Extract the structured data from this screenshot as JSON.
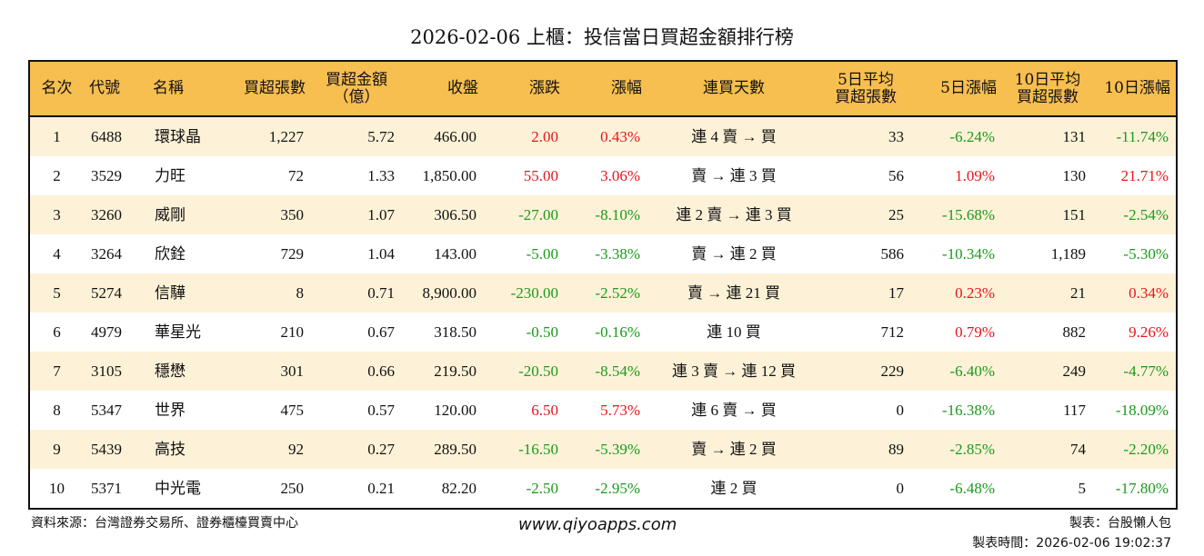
{
  "title": "2026-02-06 上櫃：投信當日買超金額排行榜",
  "colors": {
    "header": "#f7be50",
    "row_alt": "#fdf2d8",
    "up": "#e8141c",
    "down": "#1a9a1a"
  },
  "headers": [
    "名次",
    "代號",
    "名稱",
    "買超張數",
    "買超金額\n（億）",
    "收盤",
    "漲跌",
    "漲幅",
    "連買天數",
    "5日平均\n買超張數",
    "5日漲幅",
    "10日平均\n買超張數",
    "10日漲幅"
  ],
  "rows": [
    [
      "1",
      "6488",
      "環球晶",
      "1,227",
      "5.72",
      "466.00",
      "2.00",
      "0.43%",
      "連 4 賣 → 買",
      "33",
      "-6.24%",
      "131",
      "-11.74%"
    ],
    [
      "2",
      "3529",
      "力旺",
      "72",
      "1.33",
      "1,850.00",
      "55.00",
      "3.06%",
      "賣 → 連 3 買",
      "56",
      "1.09%",
      "130",
      "21.71%"
    ],
    [
      "3",
      "3260",
      "威剛",
      "350",
      "1.07",
      "306.50",
      "-27.00",
      "-8.10%",
      "連 2 賣 → 連 3 買",
      "25",
      "-15.68%",
      "151",
      "-2.54%"
    ],
    [
      "4",
      "3264",
      "欣銓",
      "729",
      "1.04",
      "143.00",
      "-5.00",
      "-3.38%",
      "賣 → 連 2 買",
      "586",
      "-10.34%",
      "1,189",
      "-5.30%"
    ],
    [
      "5",
      "5274",
      "信驊",
      "8",
      "0.71",
      "8,900.00",
      "-230.00",
      "-2.52%",
      "賣 → 連 21 買",
      "17",
      "0.23%",
      "21",
      "0.34%"
    ],
    [
      "6",
      "4979",
      "華星光",
      "210",
      "0.67",
      "318.50",
      "-0.50",
      "-0.16%",
      "連 10 買",
      "712",
      "0.79%",
      "882",
      "9.26%"
    ],
    [
      "7",
      "3105",
      "穩懋",
      "301",
      "0.66",
      "219.50",
      "-20.50",
      "-8.54%",
      "連 3 賣 → 連 12 買",
      "229",
      "-6.40%",
      "249",
      "-4.77%"
    ],
    [
      "8",
      "5347",
      "世界",
      "475",
      "0.57",
      "120.00",
      "6.50",
      "5.73%",
      "連 6 賣 → 買",
      "0",
      "-16.38%",
      "117",
      "-18.09%"
    ],
    [
      "9",
      "5439",
      "高技",
      "92",
      "0.27",
      "289.50",
      "-16.50",
      "-5.39%",
      "賣 → 連 2 買",
      "89",
      "-2.85%",
      "74",
      "-2.20%"
    ],
    [
      "10",
      "5371",
      "中光電",
      "250",
      "0.21",
      "82.20",
      "-2.50",
      "-2.95%",
      "連 2 買",
      "0",
      "-6.48%",
      "5",
      "-17.80%"
    ]
  ],
  "footer": {
    "source": "資料來源：台灣證券交易所、證券櫃檯買賣中心",
    "site": "www.qiyoapps.com",
    "maker": "製表：台股懶人包",
    "time": "製表時間：2026-02-06 19:02:37"
  }
}
